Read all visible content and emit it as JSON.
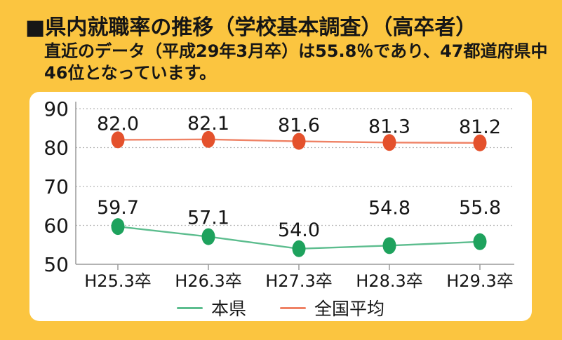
{
  "page": {
    "background_color": "#fbc540",
    "title": "■県内就職率の推移（学校基本調査）（高卒者）",
    "subtitle_line1": "直近のデータ（平成29年3月卒）は55.8％であり、47都道府県中",
    "subtitle_line2": "46位となっています。"
  },
  "chart_data": {
    "type": "line",
    "title": "県内就職率の推移（学校基本調査）（高卒者）",
    "categories": [
      "H25.3卒",
      "H26.3卒",
      "H27.3卒",
      "H28.3卒",
      "H29.3卒"
    ],
    "series": [
      {
        "name": "本県",
        "values": [
          59.7,
          57.1,
          54.0,
          54.8,
          55.8
        ],
        "line_color": "#5cbd8e",
        "marker_color": "#1ea25d",
        "label_offsets": [
          -18,
          -18,
          -18,
          -45,
          -40
        ]
      },
      {
        "name": "全国平均",
        "values": [
          82.0,
          82.1,
          81.6,
          81.3,
          81.2
        ],
        "line_color": "#ef8265",
        "marker_color": "#e4512c",
        "label_offsets": [
          -14,
          -14,
          -14,
          -14,
          -14
        ]
      }
    ],
    "xlabel": "",
    "ylabel": "",
    "ylim": [
      50,
      90
    ],
    "yticks": [
      50,
      60,
      70,
      80,
      90
    ],
    "grid": "horizontal-dotted",
    "legend_position": "bottom",
    "value_label_decimals": 1,
    "axis_color": "#9a9a9a",
    "grid_color": "#b8b8b8",
    "text_color": "#161616"
  }
}
